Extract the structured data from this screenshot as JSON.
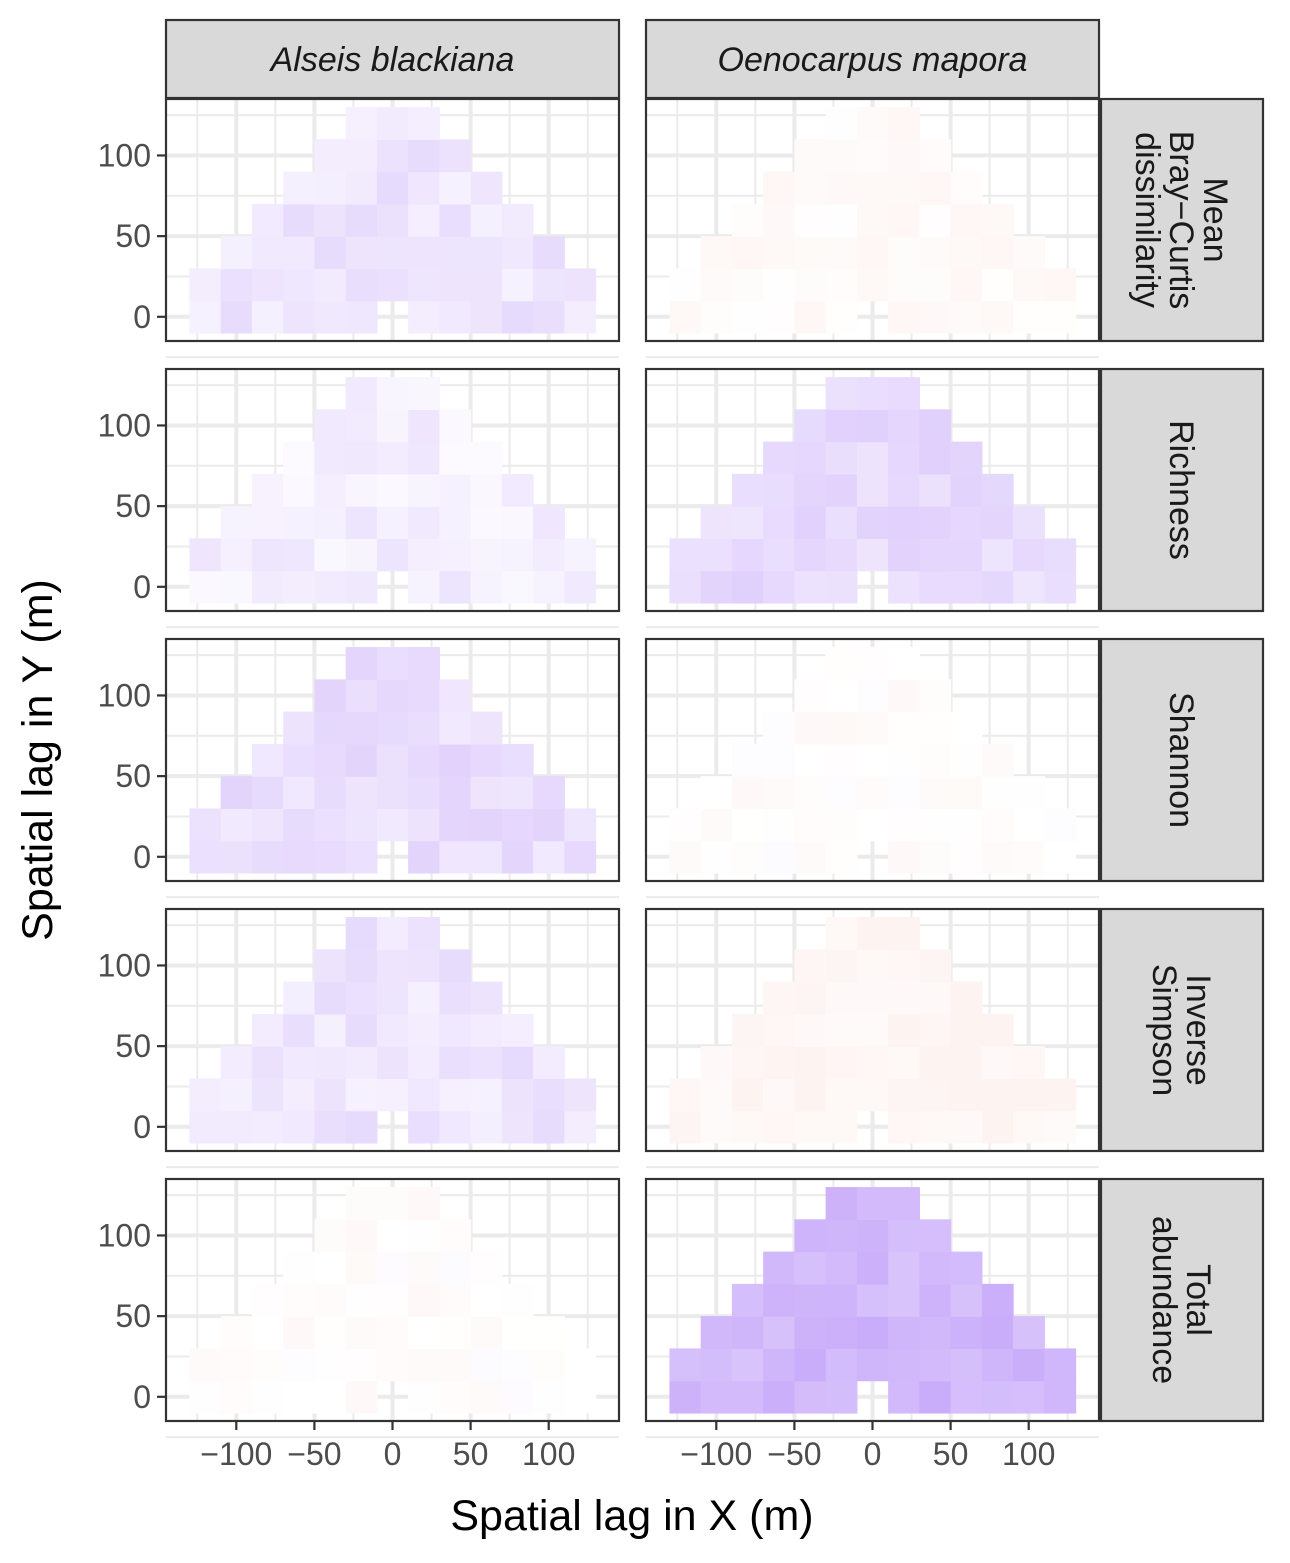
{
  "chart_data": {
    "type": "heatmap",
    "xlabel": "Spatial lag in X (m)",
    "ylabel": "Spatial lag in Y (m)",
    "column_facets": [
      "Alseis blackiana",
      "Oenocarpus mapora"
    ],
    "row_facets": [
      "Mean\nBray−Curtis\ndissimilarity",
      "Richness",
      "Shannon",
      "Inverse\nSimpson",
      "Total\nabundance"
    ],
    "x_ticks": [
      -100,
      -50,
      0,
      50,
      100
    ],
    "x_tick_labels": [
      "−100",
      "−50",
      "0",
      "50",
      "100"
    ],
    "y_ticks": [
      0,
      50,
      100
    ],
    "y_tick_labels": [
      "0",
      "50",
      "100"
    ],
    "xlim": [
      -145,
      145
    ],
    "ylim": [
      -15,
      135
    ],
    "cell_size": 20,
    "x_centers": [
      -120,
      -100,
      -80,
      -60,
      -40,
      -20,
      0,
      20,
      40,
      60,
      80,
      100,
      120
    ],
    "y_centers": [
      0,
      20,
      40,
      60,
      80,
      100,
      120
    ],
    "row_x_ranges": [
      [
        -120,
        120
      ],
      [
        -120,
        120
      ],
      [
        -100,
        100
      ],
      [
        -80,
        80
      ],
      [
        -60,
        60
      ],
      [
        -40,
        40
      ],
      [
        -20,
        20
      ]
    ],
    "missing_cells": [
      [
        0,
        0
      ]
    ],
    "color_scale": {
      "low": "#f9d8d0",
      "mid": "#ffffff",
      "high": "#b48cf8",
      "domain": [
        -1,
        1
      ]
    },
    "panels": [
      {
        "row": 0,
        "col": 0,
        "level": 0.22
      },
      {
        "row": 0,
        "col": 1,
        "level": -0.12
      },
      {
        "row": 1,
        "col": 0,
        "level": 0.14
      },
      {
        "row": 1,
        "col": 1,
        "level": 0.32
      },
      {
        "row": 2,
        "col": 0,
        "level": 0.28
      },
      {
        "row": 2,
        "col": 1,
        "level": -0.06
      },
      {
        "row": 3,
        "col": 0,
        "level": 0.22
      },
      {
        "row": 3,
        "col": 1,
        "level": -0.22
      },
      {
        "row": 4,
        "col": 0,
        "level": -0.06
      },
      {
        "row": 4,
        "col": 1,
        "level": 0.62
      }
    ]
  }
}
